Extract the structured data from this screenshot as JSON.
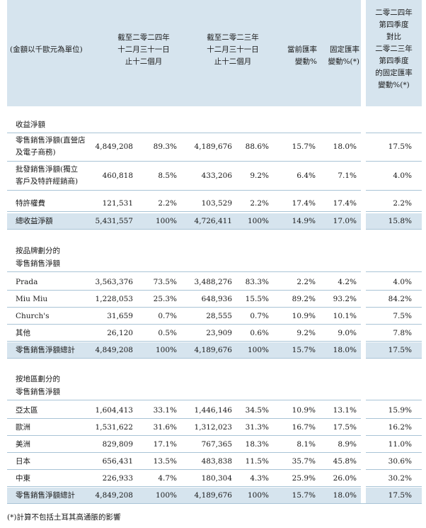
{
  "header": {
    "unit_label": "(金額以千歐元為單位)",
    "col_2024": [
      "截至二零二四年",
      "十二月三十一日",
      "止十二個月"
    ],
    "col_2023": [
      "截至二零二三年",
      "十二月三十一日",
      "止十二個月"
    ],
    "col_current_fx": [
      "當前匯率",
      "變動%"
    ],
    "col_constant_fx": [
      "固定匯率",
      "變動%(*)"
    ],
    "col_q4": [
      "二零二四年",
      "第四季度",
      "對比",
      "二零二三年",
      "第四季度",
      "的固定匯率",
      "變動%(*)"
    ]
  },
  "sections": [
    {
      "title": [
        "收益淨額"
      ],
      "rows": [
        {
          "label": [
            "零售銷售淨額(直營店",
            "及電子商務)"
          ],
          "v2024": "4,849,208",
          "p2024": "89.3%",
          "v2023": "4,189,676",
          "p2023": "88.6%",
          "cur": "15.7%",
          "const": "18.0%",
          "q4": "17.5%"
        },
        {
          "label": [
            "批發銷售淨額(獨立",
            "客戶及特許經銷商)"
          ],
          "v2024": "460,818",
          "p2024": "8.5%",
          "v2023": "433,206",
          "p2023": "9.2%",
          "cur": "6.4%",
          "const": "7.1%",
          "q4": "4.0%"
        },
        {
          "label": [
            "特許權費"
          ],
          "v2024": "121,531",
          "p2024": "2.2%",
          "v2023": "103,529",
          "p2023": "2.2%",
          "cur": "17.4%",
          "const": "17.4%",
          "q4": "2.2%"
        },
        {
          "label": [
            "總收益淨額"
          ],
          "v2024": "5,431,557",
          "p2024": "100%",
          "v2023": "4,726,411",
          "p2023": "100%",
          "cur": "14.9%",
          "const": "17.0%",
          "q4": "15.8%",
          "total": true
        }
      ]
    },
    {
      "title": [
        "按品牌劃分的",
        "零售銷售淨額"
      ],
      "rows": [
        {
          "label": [
            "Prada"
          ],
          "v2024": "3,563,376",
          "p2024": "73.5%",
          "v2023": "3,488,276",
          "p2023": "83.3%",
          "cur": "2.2%",
          "const": "4.2%",
          "q4": "4.0%"
        },
        {
          "label": [
            "Miu Miu"
          ],
          "v2024": "1,228,053",
          "p2024": "25.3%",
          "v2023": "648,936",
          "p2023": "15.5%",
          "cur": "89.2%",
          "const": "93.2%",
          "q4": "84.2%"
        },
        {
          "label": [
            "Church's"
          ],
          "v2024": "31,659",
          "p2024": "0.7%",
          "v2023": "28,555",
          "p2023": "0.7%",
          "cur": "10.9%",
          "const": "10.1%",
          "q4": "7.5%"
        },
        {
          "label": [
            "其他"
          ],
          "v2024": "26,120",
          "p2024": "0.5%",
          "v2023": "23,909",
          "p2023": "0.6%",
          "cur": "9.2%",
          "const": "9.0%",
          "q4": "7.8%"
        },
        {
          "label": [
            "零售銷售淨額總計"
          ],
          "v2024": "4,849,208",
          "p2024": "100%",
          "v2023": "4,189,676",
          "p2023": "100%",
          "cur": "15.7%",
          "const": "18.0%",
          "q4": "17.5%",
          "total": true
        }
      ]
    },
    {
      "title": [
        "按地區劃分的",
        "零售銷售淨額"
      ],
      "rows": [
        {
          "label": [
            "亞太區"
          ],
          "v2024": "1,604,413",
          "p2024": "33.1%",
          "v2023": "1,446,146",
          "p2023": "34.5%",
          "cur": "10.9%",
          "const": "13.1%",
          "q4": "15.9%"
        },
        {
          "label": [
            "歐洲"
          ],
          "v2024": "1,531,622",
          "p2024": "31.6%",
          "v2023": "1,312,023",
          "p2023": "31.3%",
          "cur": "16.7%",
          "const": "17.5%",
          "q4": "16.2%"
        },
        {
          "label": [
            "美洲"
          ],
          "v2024": "829,809",
          "p2024": "17.1%",
          "v2023": "767,365",
          "p2023": "18.3%",
          "cur": "8.1%",
          "const": "8.9%",
          "q4": "11.0%"
        },
        {
          "label": [
            "日本"
          ],
          "v2024": "656,431",
          "p2024": "13.5%",
          "v2023": "483,838",
          "p2023": "11.5%",
          "cur": "35.7%",
          "const": "45.8%",
          "q4": "30.6%"
        },
        {
          "label": [
            "中東"
          ],
          "v2024": "226,933",
          "p2024": "4.7%",
          "v2023": "180,304",
          "p2023": "4.3%",
          "cur": "25.9%",
          "const": "26.0%",
          "q4": "30.2%"
        },
        {
          "label": [
            "零售銷售淨額總計"
          ],
          "v2024": "4,849,208",
          "p2024": "100%",
          "v2023": "4,189,676",
          "p2023": "100%",
          "cur": "15.7%",
          "const": "18.0%",
          "q4": "17.5%",
          "total": true
        }
      ]
    }
  ],
  "footnote": "(*)計算不包括土耳其高通脹的影響"
}
